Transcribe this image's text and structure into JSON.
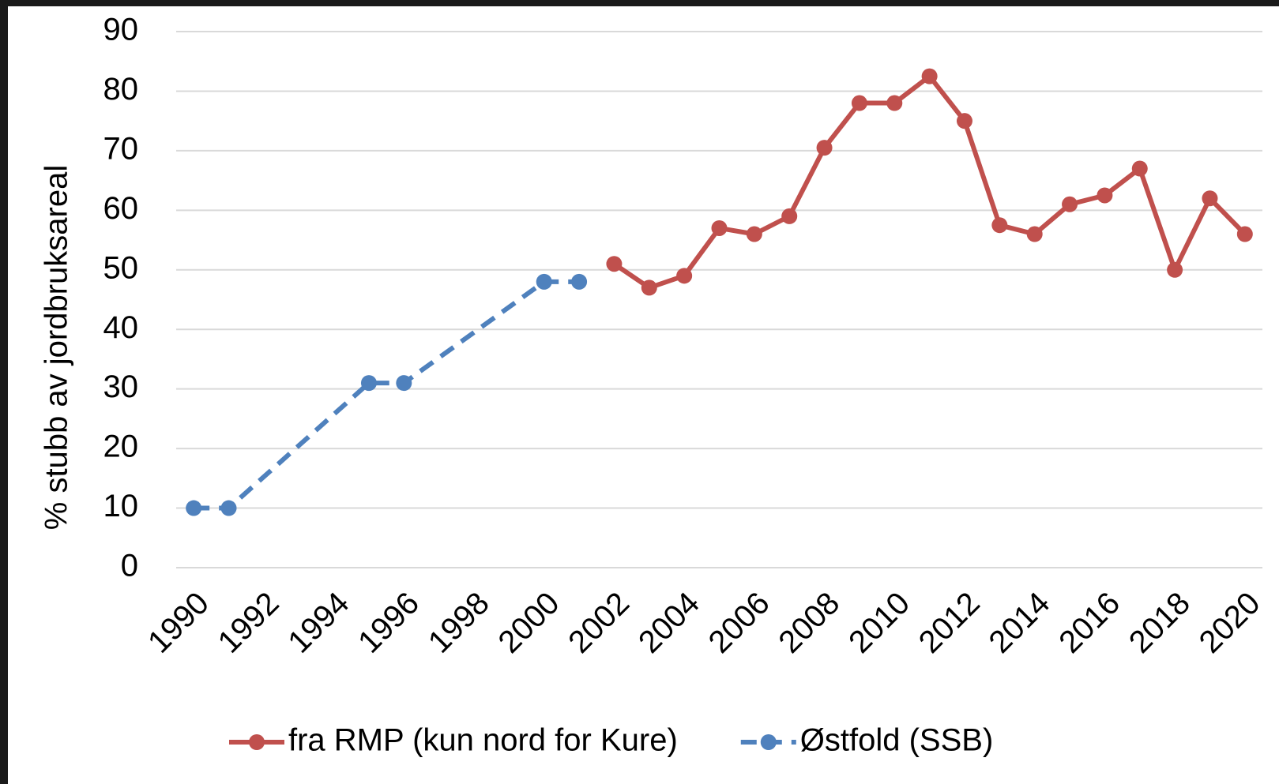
{
  "chart_data": {
    "type": "line",
    "y_label": "% stubb av jordbruksareal",
    "series": [
      {
        "name": "fra RMP (kun nord for Kure)",
        "color": "#c0504d",
        "dashed": false,
        "x": [
          2002,
          2003,
          2004,
          2005,
          2006,
          2007,
          2008,
          2009,
          2010,
          2011,
          2012,
          2013,
          2014,
          2015,
          2016,
          2017,
          2018,
          2019,
          2020
        ],
        "values": [
          51,
          47,
          49,
          57,
          56,
          59,
          70.5,
          78,
          78,
          82.5,
          75,
          57.5,
          56,
          61,
          62.5,
          67,
          50,
          62,
          56
        ]
      },
      {
        "name": "Østfold (SSB)",
        "color": "#4f81bd",
        "dashed": true,
        "x": [
          1990,
          1991,
          1995,
          1996,
          2000,
          2001
        ],
        "values": [
          10,
          10,
          31,
          31,
          48,
          48
        ]
      }
    ],
    "xlim": [
      1989.5,
      2020.5
    ],
    "xticks": [
      1990,
      1992,
      1994,
      1996,
      1998,
      2000,
      2002,
      2004,
      2006,
      2008,
      2010,
      2012,
      2014,
      2016,
      2018,
      2020
    ],
    "ylim": [
      0,
      90
    ],
    "yticks": [
      0,
      10,
      20,
      30,
      40,
      50,
      60,
      70,
      80,
      90
    ],
    "grid": true,
    "legend": "bottom"
  }
}
